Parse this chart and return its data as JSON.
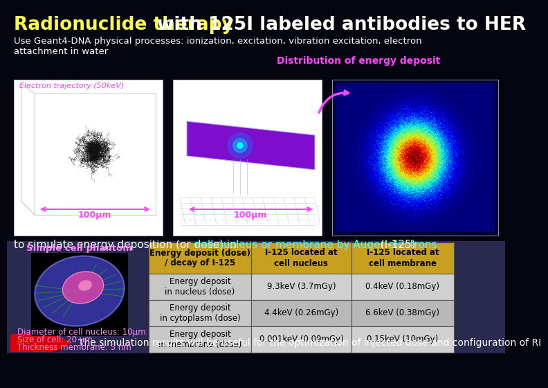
{
  "slide_bg": "#050510",
  "title_part1": "Radionuclide therapy ",
  "title_part2": "with 125I labeled antibodies to HER",
  "title_color1": "#ffff44",
  "title_color2": "#ffffff",
  "subtitle_line1": "Use Geant4-DNA physical processes: ionization, excitation, vibration excitation, electron",
  "subtitle_line2": "attachment in water",
  "subtitle_color": "#ffffff",
  "dist_label": "Distribution of energy deposit",
  "dist_label_color": "#ff44ff",
  "electron_label": "Electron trajectory (50keV)",
  "electron_label_color": "#ff44ff",
  "mu_label": "100μm",
  "mu_color": "#ff44ff",
  "simulate_text1": "to simulate energy deposition (or dose) in ",
  "simulate_text2": "cell nucleus or membrane by Auger electrons",
  "simulate_text3": " (I-125)",
  "simulate_color1": "#ffffff",
  "simulate_color2": "#44ffff",
  "simulate_color3": "#ffffff",
  "lower_bg": "#2a2a50",
  "cell_phantom_label": "Simple cell phantom",
  "cell_phantom_color": "#ff88ff",
  "cell_info1": "Diameter of cell nucleus: 10μm",
  "cell_info2": "Size of cell: 20 μm",
  "cell_info3": "Thickness membrane: 5 nm",
  "cell_info_color": "#ff88ff",
  "table_header_bg": "#c8a020",
  "table_header_color": "#000000",
  "table_row1_bg": "#d0d0d0",
  "table_row2_bg": "#b8b8b8",
  "table_body_color": "#000000",
  "table_col_headers": [
    "Energy deposit (dose)\n/ decay of I-125",
    "I-125 located at\ncell nucleus",
    "I-125 located at\ncell membrane"
  ],
  "table_rows": [
    [
      "Energy deposit\nin nucleus (dose)",
      "9.3keV (3.7mGy)",
      "0.4keV (0.18mGy)"
    ],
    [
      "Energy deposit\nin cytoplasm (dose)",
      "4.4keV (0.26mGy)",
      "6.6keV (0.38mGy)"
    ],
    [
      "Energy deposit\nin membrane (dose)",
      "0.001keV (0.09mGy)",
      "0.15keV (10mGy)"
    ]
  ],
  "bottom_text": "The simulation results will be useful for the optimization of injected dose and configuration of RI",
  "bottom_text_color": "#ffffff",
  "arrow_color": "#dd0000"
}
